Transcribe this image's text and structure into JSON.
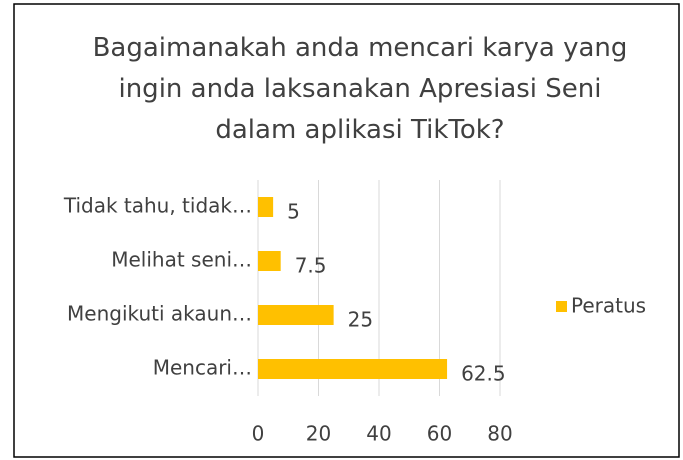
{
  "chart_data": {
    "type": "barh",
    "title": "Bagaimanakah anda mencari karya yang ingin anda laksanakan Apresiasi Seni  dalam aplikasi TikTok?",
    "categories": [
      "Tidak tahu, tidak…",
      "Melihat seni…",
      "Mengikuti akaun…",
      "Mencari…"
    ],
    "series": [
      {
        "name": "Peratus",
        "color": "#ffc000",
        "values": [
          5,
          7.5,
          25,
          62.5
        ]
      }
    ],
    "xlim": [
      0,
      80
    ],
    "xticks": [
      0,
      20,
      40,
      60,
      80
    ],
    "grid": true,
    "legend": "right"
  }
}
